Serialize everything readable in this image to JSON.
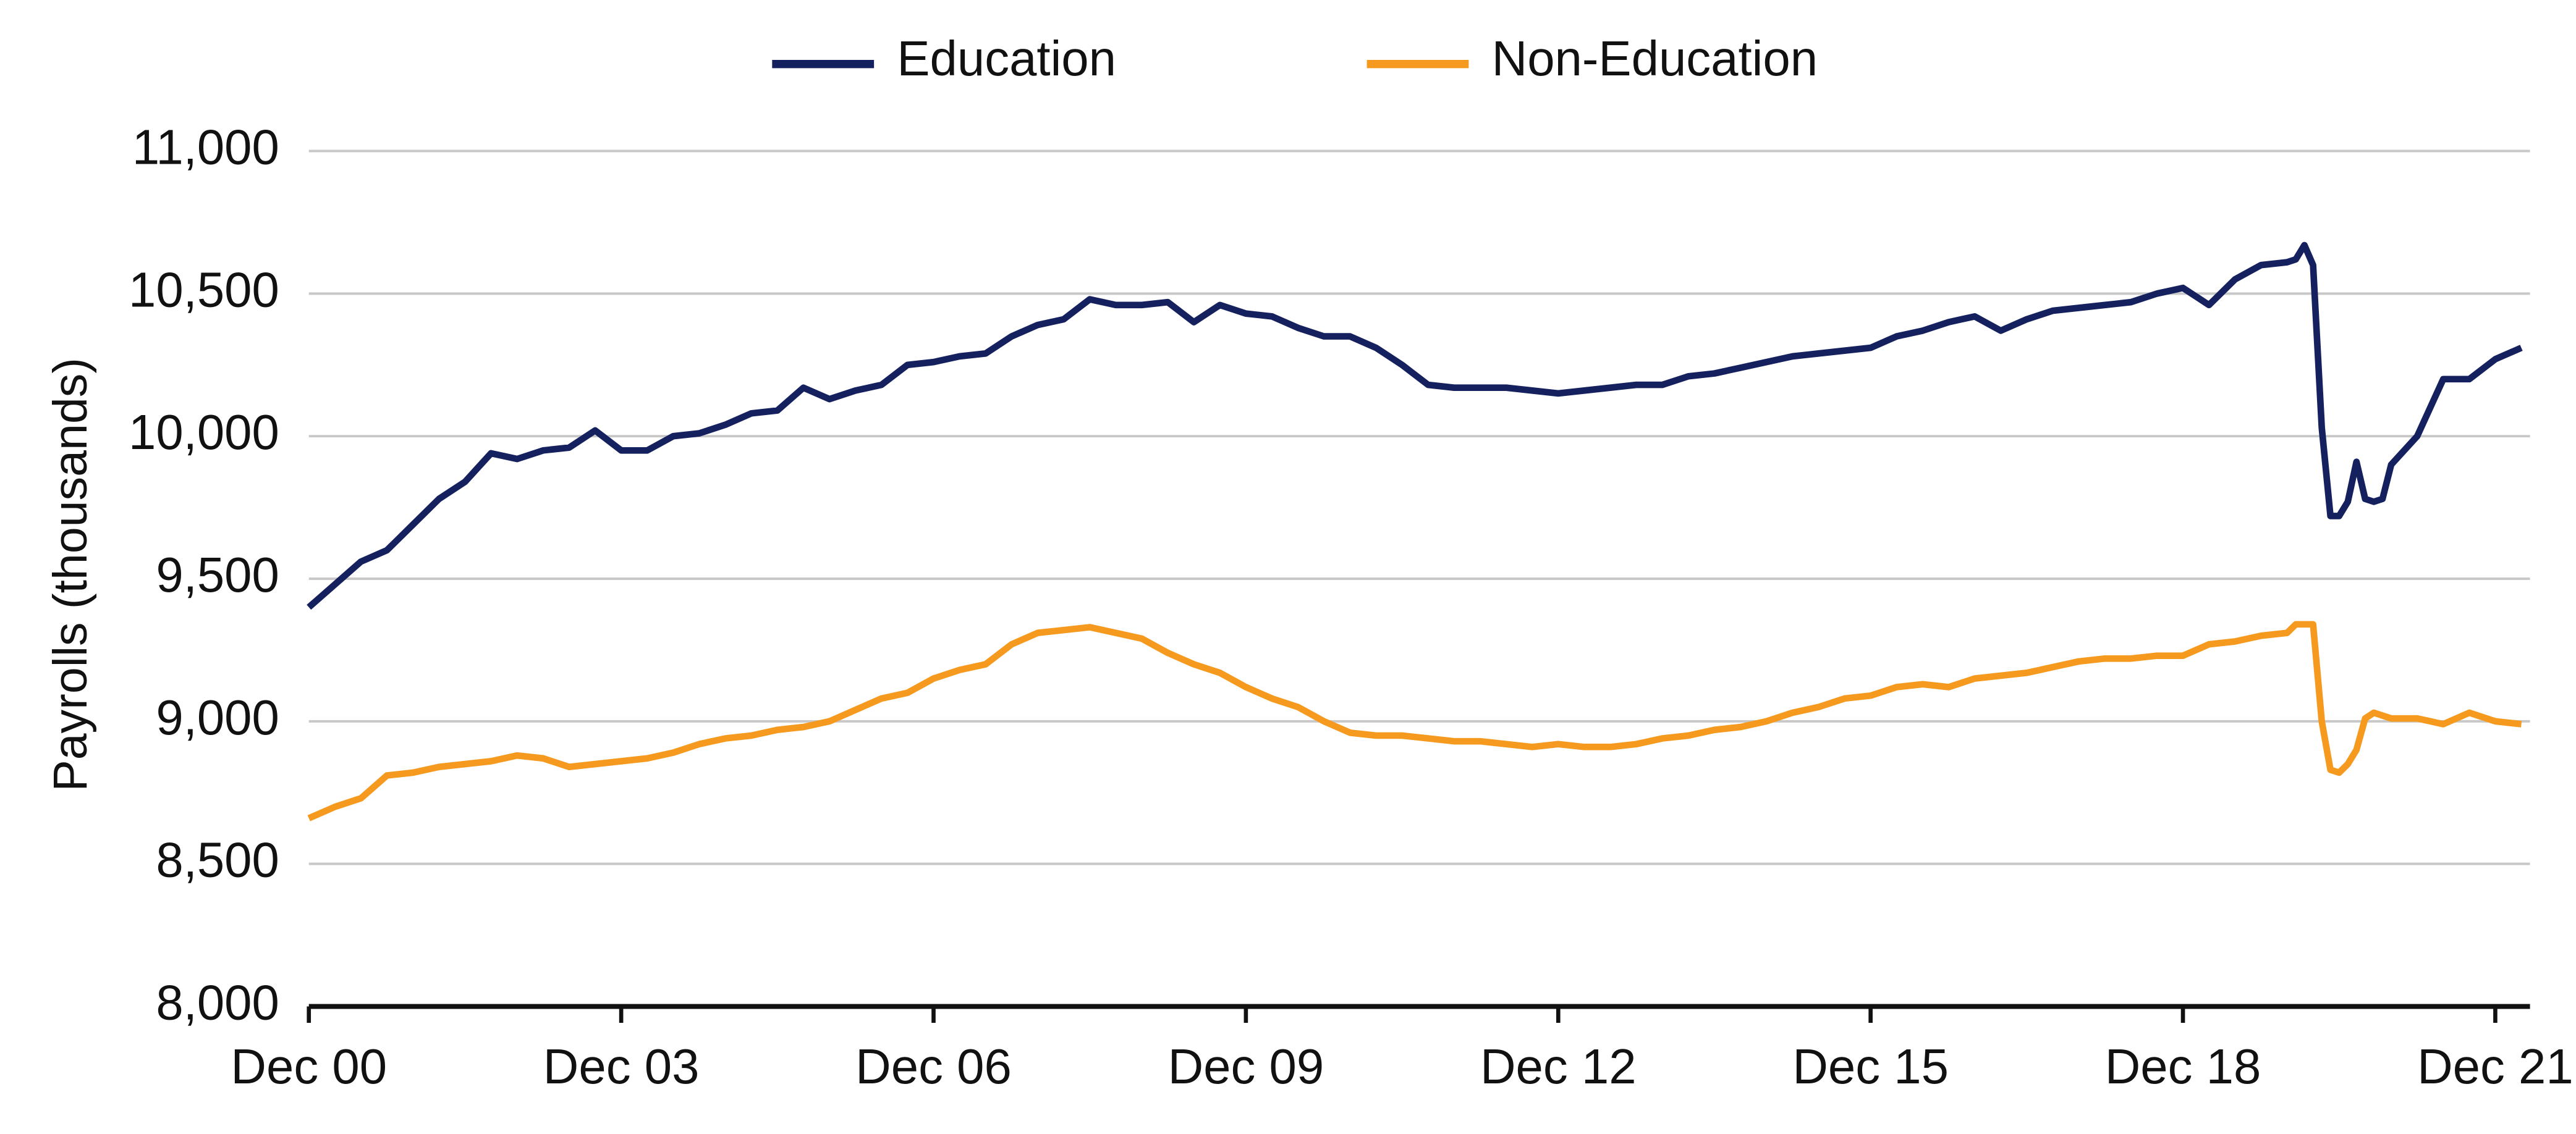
{
  "chart_data": {
    "type": "line",
    "y_label": "Payrolls (thousands)",
    "x": [
      "2000-12",
      "2001-03",
      "2001-06",
      "2001-09",
      "2001-12",
      "2002-03",
      "2002-06",
      "2002-09",
      "2002-12",
      "2003-03",
      "2003-06",
      "2003-09",
      "2003-12",
      "2004-03",
      "2004-06",
      "2004-09",
      "2004-12",
      "2005-03",
      "2005-06",
      "2005-09",
      "2005-12",
      "2006-03",
      "2006-06",
      "2006-09",
      "2006-12",
      "2007-03",
      "2007-06",
      "2007-09",
      "2007-12",
      "2008-03",
      "2008-06",
      "2008-09",
      "2008-12",
      "2009-03",
      "2009-06",
      "2009-09",
      "2009-12",
      "2010-03",
      "2010-06",
      "2010-09",
      "2010-12",
      "2011-03",
      "2011-06",
      "2011-09",
      "2011-12",
      "2012-03",
      "2012-06",
      "2012-09",
      "2012-12",
      "2013-03",
      "2013-06",
      "2013-09",
      "2013-12",
      "2014-03",
      "2014-06",
      "2014-09",
      "2014-12",
      "2015-03",
      "2015-06",
      "2015-09",
      "2015-12",
      "2016-03",
      "2016-06",
      "2016-09",
      "2016-12",
      "2017-03",
      "2017-06",
      "2017-09",
      "2017-12",
      "2018-03",
      "2018-06",
      "2018-09",
      "2018-12",
      "2019-03",
      "2019-06",
      "2019-09",
      "2019-12",
      "2020-01",
      "2020-02",
      "2020-03",
      "2020-04",
      "2020-05",
      "2020-06",
      "2020-07",
      "2020-08",
      "2020-09",
      "2020-10",
      "2020-11",
      "2020-12",
      "2021-03",
      "2021-06",
      "2021-09",
      "2021-12",
      "2022-03"
    ],
    "series": [
      {
        "name": "Education",
        "color": "#14215e",
        "values": [
          9400,
          9480,
          9560,
          9600,
          9690,
          9780,
          9840,
          9940,
          9920,
          9950,
          9960,
          10020,
          9950,
          9950,
          10000,
          10010,
          10040,
          10080,
          10090,
          10170,
          10130,
          10160,
          10180,
          10250,
          10260,
          10280,
          10290,
          10350,
          10390,
          10410,
          10480,
          10460,
          10460,
          10470,
          10400,
          10460,
          10430,
          10420,
          10380,
          10350,
          10350,
          10310,
          10250,
          10180,
          10170,
          10170,
          10170,
          10160,
          10150,
          10160,
          10170,
          10180,
          10180,
          10210,
          10220,
          10240,
          10260,
          10280,
          10290,
          10300,
          10310,
          10350,
          10370,
          10400,
          10420,
          10370,
          10410,
          10440,
          10450,
          10460,
          10470,
          10500,
          10520,
          10460,
          10550,
          10600,
          10610,
          10620,
          10670,
          10600,
          10030,
          9720,
          9720,
          9770,
          9910,
          9780,
          9770,
          9780,
          9900,
          10000,
          10200,
          10200,
          10270,
          10310
        ]
      },
      {
        "name": "Non-Education",
        "color": "#f59a1e",
        "values": [
          8660,
          8700,
          8730,
          8810,
          8820,
          8840,
          8850,
          8860,
          8880,
          8870,
          8840,
          8850,
          8860,
          8870,
          8890,
          8920,
          8940,
          8950,
          8970,
          8980,
          9000,
          9040,
          9080,
          9100,
          9150,
          9180,
          9200,
          9270,
          9310,
          9320,
          9330,
          9310,
          9290,
          9240,
          9200,
          9170,
          9120,
          9080,
          9050,
          9000,
          8960,
          8950,
          8950,
          8940,
          8930,
          8930,
          8920,
          8910,
          8920,
          8910,
          8910,
          8920,
          8940,
          8950,
          8970,
          8980,
          9000,
          9030,
          9050,
          9080,
          9090,
          9120,
          9130,
          9120,
          9150,
          9160,
          9170,
          9190,
          9210,
          9220,
          9220,
          9230,
          9230,
          9270,
          9280,
          9300,
          9310,
          9340,
          9340,
          9340,
          9000,
          8830,
          8820,
          8850,
          8900,
          9010,
          9030,
          9020,
          9010,
          9010,
          8990,
          9030,
          9000,
          8990
        ]
      }
    ],
    "xlim": [
      "2000-12",
      "2022-04"
    ],
    "xticks": [
      {
        "value": "2000-12",
        "label": "Dec 00"
      },
      {
        "value": "2003-12",
        "label": "Dec 03"
      },
      {
        "value": "2006-12",
        "label": "Dec 06"
      },
      {
        "value": "2009-12",
        "label": "Dec 09"
      },
      {
        "value": "2012-12",
        "label": "Dec 12"
      },
      {
        "value": "2015-12",
        "label": "Dec 15"
      },
      {
        "value": "2018-12",
        "label": "Dec 18"
      },
      {
        "value": "2021-12",
        "label": "Dec 21"
      }
    ],
    "ylim": [
      8000,
      11000
    ],
    "yticks": [
      {
        "value": 8000,
        "label": "8,000"
      },
      {
        "value": 8500,
        "label": "8,500"
      },
      {
        "value": 9000,
        "label": "9,000"
      },
      {
        "value": 9500,
        "label": "9,500"
      },
      {
        "value": 10000,
        "label": "10,000"
      },
      {
        "value": 10500,
        "label": "10,500"
      },
      {
        "value": 11000,
        "label": "11,000"
      }
    ],
    "grid": true,
    "legend": "top"
  }
}
